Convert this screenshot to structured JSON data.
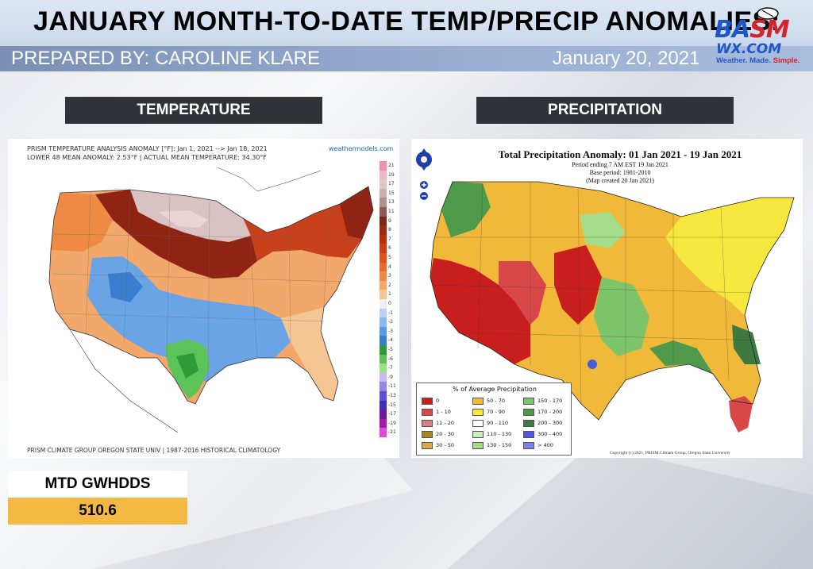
{
  "header": {
    "title": "JANUARY MONTH-TO-DATE TEMP/PRECIP ANOMALIES:",
    "prepared_by": "PREPARED BY: CAROLINE KLARE",
    "date": "January 20, 2021"
  },
  "logo": {
    "line1_a": "BA",
    "line1_b": "SM",
    "line2": "WX.COM",
    "tagline": "Weather. Made.",
    "tagline_accent": "Simple."
  },
  "sections": {
    "temperature_label": "TEMPERATURE",
    "precipitation_label": "PRECIPITATION"
  },
  "temperature_map": {
    "header_line1": "PRISM TEMPERATURE ANALYSIS ANOMALY [°F]: Jan 1, 2021 --> Jan 18, 2021",
    "header_line2": "LOWER 48 MEAN ANOMALY: 2.53°F | ACTUAL MEAN TEMPERATURE: 34.30°F",
    "source": "weathermodels.com",
    "footer": "PRISM CLIMATE GROUP OREGON STATE UNIV | 1987-2016 HISTORICAL CLIMATOLOGY",
    "scale": [
      {
        "label": "21",
        "color": "#ef8fb3"
      },
      {
        "label": "19",
        "color": "#e9b8c3"
      },
      {
        "label": "17",
        "color": "#dcc6c6"
      },
      {
        "label": "15",
        "color": "#c9b0ad"
      },
      {
        "label": "13",
        "color": "#b08f8a"
      },
      {
        "label": "11",
        "color": "#8c5a4f"
      },
      {
        "label": "9",
        "color": "#7a2a1a"
      },
      {
        "label": "8",
        "color": "#9a2a10"
      },
      {
        "label": "7",
        "color": "#b4300d"
      },
      {
        "label": "6",
        "color": "#c94012"
      },
      {
        "label": "5",
        "color": "#d9541e"
      },
      {
        "label": "4",
        "color": "#e56c2c"
      },
      {
        "label": "3",
        "color": "#ee8a44"
      },
      {
        "label": "2",
        "color": "#f3a868"
      },
      {
        "label": "1",
        "color": "#f6c594"
      },
      {
        "label": "0",
        "color": "#eeeeee"
      },
      {
        "label": "-1",
        "color": "#b8d4f0"
      },
      {
        "label": "-2",
        "color": "#8ab8ea"
      },
      {
        "label": "-3",
        "color": "#5a9ae0"
      },
      {
        "label": "-4",
        "color": "#3a7ed0"
      },
      {
        "label": "-5",
        "color": "#2f9a3a"
      },
      {
        "label": "-6",
        "color": "#5cc25a"
      },
      {
        "label": "-7",
        "color": "#9ee08a"
      },
      {
        "label": "-9",
        "color": "#c7b8f0"
      },
      {
        "label": "-11",
        "color": "#8f86e6"
      },
      {
        "label": "-13",
        "color": "#5a4fd6"
      },
      {
        "label": "-15",
        "color": "#3e2fb0"
      },
      {
        "label": "-17",
        "color": "#6a1a96"
      },
      {
        "label": "-19",
        "color": "#a21aa8"
      },
      {
        "label": "-21",
        "color": "#e04ad8"
      }
    ]
  },
  "precip_map": {
    "title": "Total Precipitation Anomaly: 01 Jan 2021 - 19 Jan 2021",
    "sub1": "Period ending 7 AM EST 19 Jan 2021",
    "sub2": "Base period: 1981-2010",
    "sub3": "(Map created 20 Jan 2021)",
    "legend_title": "% of Average Precipitation",
    "legend": [
      {
        "label": "0",
        "color": "#c81e1e"
      },
      {
        "label": "1 - 10",
        "color": "#d84848"
      },
      {
        "label": "11 - 20",
        "color": "#d98080"
      },
      {
        "label": "20 - 30",
        "color": "#a8842a"
      },
      {
        "label": "30 - 50",
        "color": "#d9a84a"
      },
      {
        "label": "50 - 70",
        "color": "#f1b93a"
      },
      {
        "label": "70 - 90",
        "color": "#f6e83e"
      },
      {
        "label": "90 - 110",
        "color": "#ffffff"
      },
      {
        "label": "110 - 130",
        "color": "#cfeec0"
      },
      {
        "label": "130 - 150",
        "color": "#a4dc8a"
      },
      {
        "label": "150 - 170",
        "color": "#7ec46a"
      },
      {
        "label": "170 - 200",
        "color": "#4e9a4a"
      },
      {
        "label": "200 - 300",
        "color": "#3e7a40"
      },
      {
        "label": "300 - 400",
        "color": "#4a5ad8"
      },
      {
        "label": "> 400",
        "color": "#7a82e6"
      }
    ],
    "copyright": "Copyright (c) 2021, PRISM Climate Group, Oregon State University"
  },
  "gwhdd": {
    "label": "MTD GWHDDS",
    "value": "510.6"
  }
}
